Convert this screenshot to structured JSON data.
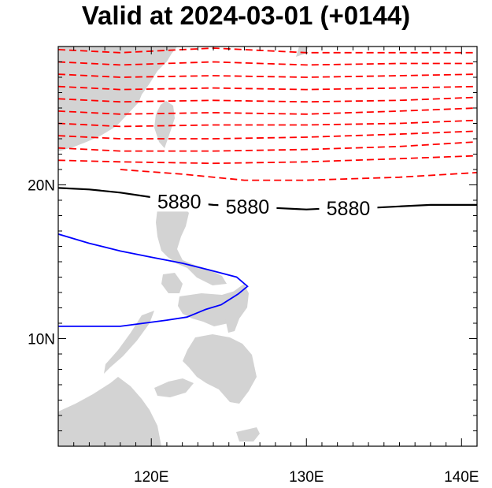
{
  "map": {
    "title": "Valid at 2024-03-01 (+0144)",
    "lat_range": [
      3,
      29
    ],
    "lon_range": [
      114,
      141
    ],
    "xticks": [
      {
        "lon": 120,
        "label": "120E"
      },
      {
        "lon": 130,
        "label": "130E"
      },
      {
        "lon": 140,
        "label": "140E"
      }
    ],
    "yticks": [
      {
        "lat": 20,
        "label": "20N"
      },
      {
        "lat": 10,
        "label": "10N"
      }
    ],
    "colors": {
      "land": "#d3d3d3",
      "dashed_contours": "#ff0000",
      "highlight_contour": "#000000",
      "region_outline": "#0000ff"
    },
    "highlight_contour": {
      "value": "5880",
      "label_lons": [
        121.8,
        126.2,
        132.7
      ]
    },
    "dashed_contours": {
      "count": 11,
      "style": "dashed"
    },
    "region_outline": {
      "style": "solid"
    },
    "chart_data": {
      "type": "map",
      "title": "Valid at 2024-03-01 (+0144)",
      "contour_labels": [
        "5880"
      ],
      "highlight_contour_lat_by_lon": [
        [
          114,
          19.8
        ],
        [
          116,
          19.7
        ],
        [
          118,
          19.5
        ],
        [
          120,
          19.2
        ],
        [
          122,
          18.9
        ],
        [
          124,
          18.7
        ],
        [
          126,
          18.6
        ],
        [
          128,
          18.5
        ],
        [
          130,
          18.4
        ],
        [
          132,
          18.5
        ],
        [
          134,
          18.5
        ],
        [
          136,
          18.6
        ],
        [
          138,
          18.7
        ],
        [
          141,
          18.7
        ]
      ],
      "dashed_contour_lats": [
        [
          [
            114,
            28.8
          ],
          [
            118,
            28.6
          ],
          [
            124,
            28.9
          ],
          [
            130,
            28.6
          ],
          [
            136,
            28.6
          ],
          [
            141,
            28.6
          ]
        ],
        [
          [
            114,
            28.0
          ],
          [
            118,
            27.8
          ],
          [
            124,
            28.0
          ],
          [
            130,
            27.8
          ],
          [
            136,
            27.9
          ],
          [
            141,
            27.9
          ]
        ],
        [
          [
            114,
            27.2
          ],
          [
            118,
            27.0
          ],
          [
            124,
            27.1
          ],
          [
            130,
            27.0
          ],
          [
            136,
            27.1
          ],
          [
            141,
            27.2
          ]
        ],
        [
          [
            114,
            26.4
          ],
          [
            118,
            26.2
          ],
          [
            124,
            26.3
          ],
          [
            130,
            26.2
          ],
          [
            136,
            26.3
          ],
          [
            141,
            26.4
          ]
        ],
        [
          [
            114,
            25.6
          ],
          [
            118,
            25.4
          ],
          [
            124,
            25.5
          ],
          [
            130,
            25.4
          ],
          [
            136,
            25.5
          ],
          [
            141,
            25.7
          ]
        ],
        [
          [
            114,
            24.8
          ],
          [
            118,
            24.6
          ],
          [
            124,
            24.7
          ],
          [
            130,
            24.6
          ],
          [
            136,
            24.8
          ],
          [
            141,
            25.0
          ]
        ],
        [
          [
            114,
            24.0
          ],
          [
            118,
            23.8
          ],
          [
            124,
            23.9
          ],
          [
            130,
            23.9
          ],
          [
            136,
            24.0
          ],
          [
            141,
            24.2
          ]
        ],
        [
          [
            114,
            23.2
          ],
          [
            118,
            23.0
          ],
          [
            124,
            23.0
          ],
          [
            130,
            23.1
          ],
          [
            136,
            23.3
          ],
          [
            141,
            23.5
          ]
        ],
        [
          [
            114,
            22.4
          ],
          [
            118,
            22.2
          ],
          [
            124,
            22.2
          ],
          [
            130,
            22.3
          ],
          [
            136,
            22.5
          ],
          [
            141,
            22.8
          ]
        ],
        [
          [
            114,
            21.6
          ],
          [
            118,
            21.5
          ],
          [
            124,
            21.4
          ],
          [
            130,
            21.5
          ],
          [
            136,
            21.7
          ],
          [
            141,
            21.9
          ]
        ],
        [
          [
            118,
            21.0
          ],
          [
            122,
            20.7
          ],
          [
            126,
            20.3
          ],
          [
            130,
            20.3
          ],
          [
            136,
            20.5
          ],
          [
            141,
            20.8
          ]
        ]
      ],
      "region_outline_points": [
        [
          114,
          16.8
        ],
        [
          116,
          16.2
        ],
        [
          118,
          15.7
        ],
        [
          120,
          15.3
        ],
        [
          122,
          14.9
        ],
        [
          124,
          14.4
        ],
        [
          125.5,
          14.0
        ],
        [
          126.2,
          13.4
        ],
        [
          125.6,
          12.9
        ],
        [
          124.5,
          12.2
        ],
        [
          123.5,
          11.9
        ],
        [
          122.3,
          11.4
        ],
        [
          121,
          11.2
        ],
        [
          119.5,
          11.0
        ],
        [
          118,
          10.8
        ],
        [
          116,
          10.8
        ],
        [
          114,
          10.8
        ]
      ]
    }
  }
}
